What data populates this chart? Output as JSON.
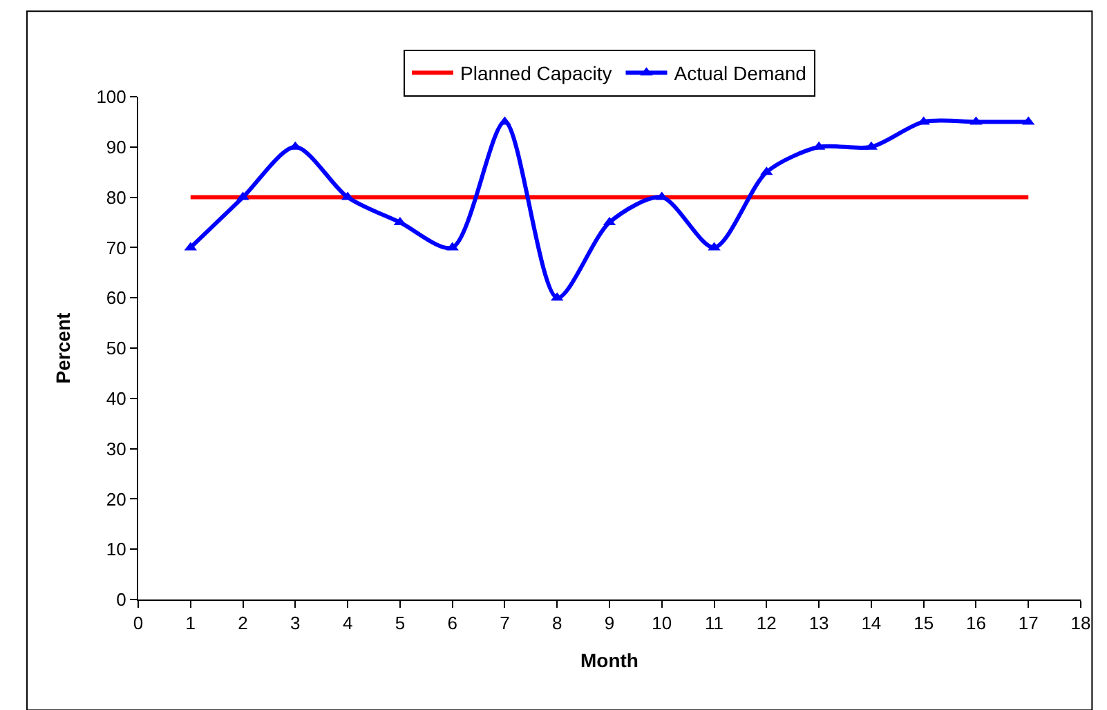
{
  "chart_data": {
    "type": "line",
    "xlabel": "Month",
    "ylabel": "Percent",
    "x": [
      1,
      2,
      3,
      4,
      5,
      6,
      7,
      8,
      9,
      10,
      11,
      12,
      13,
      14,
      15,
      16,
      17
    ],
    "series": [
      {
        "name": "Planned Capacity",
        "color": "#ff0000",
        "marker": "none",
        "values": [
          80,
          80,
          80,
          80,
          80,
          80,
          80,
          80,
          80,
          80,
          80,
          80,
          80,
          80,
          80,
          80,
          80
        ]
      },
      {
        "name": "Actual Demand",
        "color": "#0000ff",
        "marker": "triangle",
        "values": [
          70,
          80,
          90,
          80,
          75,
          70,
          95,
          60,
          75,
          80,
          70,
          85,
          90,
          90,
          95,
          95,
          95
        ]
      }
    ],
    "xlim": [
      0,
      18
    ],
    "xticks": [
      0,
      1,
      2,
      3,
      4,
      5,
      6,
      7,
      8,
      9,
      10,
      11,
      12,
      13,
      14,
      15,
      16,
      17,
      18
    ],
    "ylim": [
      0,
      100
    ],
    "yticks": [
      0,
      10,
      20,
      30,
      40,
      50,
      60,
      70,
      80,
      90,
      100
    ],
    "legend": "top",
    "line_style": "solid"
  }
}
